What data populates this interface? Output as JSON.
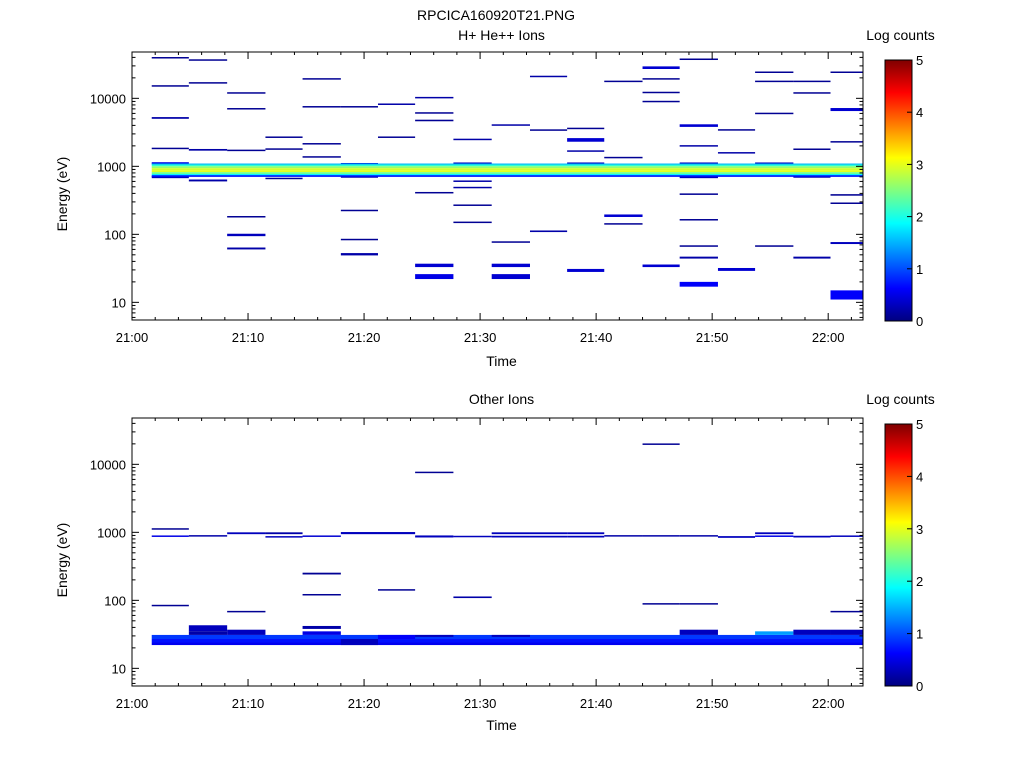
{
  "figure_title": "RPCICA160920T21.PNG",
  "chart_data": [
    {
      "type": "heatmap",
      "title": "H+ He++ Ions",
      "xlabel": "Time",
      "ylabel": "Energy (eV)",
      "colorbar_label": "Log counts",
      "x_ticks": [
        "21:00",
        "21:10",
        "21:20",
        "21:30",
        "21:40",
        "21:50",
        "22:00"
      ],
      "x_tick_minutes": [
        0,
        10,
        20,
        30,
        40,
        50,
        60
      ],
      "xlim_minutes": [
        0,
        63
      ],
      "y_ticks": [
        "10",
        "100",
        "1000",
        "10000"
      ],
      "ylim": [
        5.5,
        48000
      ],
      "y_scale": "log",
      "colorbar_ticks": [
        "0",
        "1",
        "2",
        "3",
        "4",
        "5"
      ],
      "colorbar_range": [
        0,
        5
      ],
      "colormap": "jet",
      "cells": [
        [
          1.7,
          4.9,
          39500,
          40500,
          0.1
        ],
        [
          1.7,
          4.9,
          15000,
          15600,
          0.1
        ],
        [
          1.7,
          4.9,
          5000,
          5300,
          0.2
        ],
        [
          1.7,
          4.9,
          1800,
          1880,
          0.1
        ],
        [
          1.7,
          4.9,
          1080,
          1150,
          0.5
        ],
        [
          1.7,
          4.9,
          670,
          720,
          0.3
        ],
        [
          4.9,
          8.2,
          36500,
          37500,
          0.1
        ],
        [
          4.9,
          8.2,
          16500,
          17300,
          0.1
        ],
        [
          4.9,
          8.2,
          1700,
          1800,
          0.2
        ],
        [
          4.9,
          8.2,
          600,
          640,
          0.2
        ],
        [
          8.2,
          11.5,
          11800,
          12300,
          0.1
        ],
        [
          8.2,
          11.5,
          6900,
          7200,
          0.1
        ],
        [
          8.2,
          11.5,
          1700,
          1760,
          0.1
        ],
        [
          8.2,
          11.5,
          180,
          186,
          0.1
        ],
        [
          8.2,
          11.5,
          94,
          102,
          0.3
        ],
        [
          8.2,
          11.5,
          60,
          64,
          0.2
        ],
        [
          11.5,
          14.7,
          2650,
          2750,
          0.1
        ],
        [
          11.5,
          14.7,
          1770,
          1840,
          0.1
        ],
        [
          11.5,
          14.7,
          650,
          680,
          0.1
        ],
        [
          14.7,
          18.0,
          19000,
          19800,
          0.1
        ],
        [
          14.7,
          18.0,
          7400,
          7700,
          0.1
        ],
        [
          14.7,
          18.0,
          2100,
          2200,
          0.1
        ],
        [
          14.7,
          18.0,
          1350,
          1410,
          0.1
        ],
        [
          18.0,
          21.2,
          7400,
          7700,
          0.1
        ],
        [
          18.0,
          21.2,
          1060,
          1120,
          0.4
        ],
        [
          18.0,
          21.2,
          680,
          720,
          0.2
        ],
        [
          18.0,
          21.2,
          220,
          230,
          0.1
        ],
        [
          18.0,
          21.2,
          84,
          86,
          0.1
        ],
        [
          18.0,
          21.2,
          49,
          53,
          0.2
        ],
        [
          21.2,
          24.4,
          8000,
          8400,
          0.2
        ],
        [
          21.2,
          24.4,
          2650,
          2750,
          0.1
        ],
        [
          24.4,
          27.7,
          10000,
          10500,
          0.2
        ],
        [
          24.4,
          27.7,
          6000,
          6250,
          0.1
        ],
        [
          24.4,
          27.7,
          4600,
          4850,
          0.1
        ],
        [
          24.4,
          27.7,
          400,
          420,
          0.1
        ],
        [
          24.4,
          27.7,
          33,
          37,
          0.4
        ],
        [
          24.4,
          27.7,
          22,
          26,
          0.5
        ],
        [
          27.7,
          31.0,
          2450,
          2550,
          0.2
        ],
        [
          27.7,
          31.0,
          1080,
          1140,
          0.3
        ],
        [
          27.7,
          31.0,
          590,
          620,
          0.2
        ],
        [
          27.7,
          31.0,
          480,
          500,
          0.2
        ],
        [
          27.7,
          31.0,
          265,
          275,
          0.1
        ],
        [
          27.7,
          31.0,
          148,
          154,
          0.1
        ],
        [
          31.0,
          34.3,
          3950,
          4150,
          0.2
        ],
        [
          31.0,
          34.3,
          76,
          79,
          0.1
        ],
        [
          31.0,
          34.3,
          33,
          37,
          0.4
        ],
        [
          31.0,
          34.3,
          22,
          26,
          0.4
        ],
        [
          34.3,
          37.5,
          20500,
          21500,
          0.2
        ],
        [
          34.3,
          37.5,
          3350,
          3500,
          0.1
        ],
        [
          34.3,
          37.5,
          108,
          114,
          0.2
        ],
        [
          37.5,
          40.7,
          3550,
          3700,
          0.1
        ],
        [
          37.5,
          40.7,
          2300,
          2600,
          0.4
        ],
        [
          37.5,
          40.7,
          1650,
          1720,
          0.2
        ],
        [
          37.5,
          40.7,
          1080,
          1140,
          0.3
        ],
        [
          37.5,
          40.7,
          28,
          31,
          0.4
        ],
        [
          40.7,
          44.0,
          17500,
          18200,
          0.1
        ],
        [
          40.7,
          44.0,
          1320,
          1380,
          0.1
        ],
        [
          40.7,
          44.0,
          180,
          196,
          0.4
        ],
        [
          40.7,
          44.0,
          140,
          146,
          0.1
        ],
        [
          44.0,
          47.2,
          27000,
          29500,
          0.4
        ],
        [
          44.0,
          47.2,
          19000,
          19800,
          0.1
        ],
        [
          44.0,
          47.2,
          12000,
          12500,
          0.1
        ],
        [
          44.0,
          47.2,
          8800,
          9200,
          0.1
        ],
        [
          44.0,
          47.2,
          33,
          36,
          0.4
        ],
        [
          47.2,
          50.5,
          37000,
          38500,
          0.1
        ],
        [
          47.2,
          50.5,
          3800,
          4150,
          0.4
        ],
        [
          47.2,
          50.5,
          1950,
          2050,
          0.2
        ],
        [
          47.2,
          50.5,
          1080,
          1140,
          0.3
        ],
        [
          47.2,
          50.5,
          670,
          720,
          0.3
        ],
        [
          47.2,
          50.5,
          380,
          400,
          0.1
        ],
        [
          47.2,
          50.5,
          160,
          168,
          0.1
        ],
        [
          47.2,
          50.5,
          66,
          69,
          0.1
        ],
        [
          47.2,
          50.5,
          44,
          47,
          0.2
        ],
        [
          47.2,
          50.5,
          17,
          20,
          0.6
        ],
        [
          50.5,
          53.7,
          3380,
          3520,
          0.1
        ],
        [
          50.5,
          53.7,
          1550,
          1620,
          0.2
        ],
        [
          50.5,
          53.7,
          29,
          32,
          0.4
        ],
        [
          53.7,
          57.0,
          23800,
          24800,
          0.1
        ],
        [
          53.7,
          57.0,
          17500,
          18200,
          0.1
        ],
        [
          53.7,
          57.0,
          5900,
          6150,
          0.1
        ],
        [
          53.7,
          57.0,
          1080,
          1140,
          0.3
        ],
        [
          53.7,
          57.0,
          66,
          69,
          0.1
        ],
        [
          57.0,
          60.2,
          17500,
          18200,
          0.1
        ],
        [
          57.0,
          60.2,
          11800,
          12300,
          0.1
        ],
        [
          57.0,
          60.2,
          1750,
          1830,
          0.1
        ],
        [
          57.0,
          60.2,
          680,
          720,
          0.2
        ],
        [
          57.0,
          60.2,
          44,
          47,
          0.2
        ],
        [
          60.2,
          63.0,
          23800,
          24800,
          0.1
        ],
        [
          60.2,
          63.0,
          6500,
          7200,
          0.4
        ],
        [
          60.2,
          63.0,
          2250,
          2350,
          0.1
        ],
        [
          60.2,
          63.0,
          370,
          390,
          0.1
        ],
        [
          60.2,
          63.0,
          280,
          294,
          0.1
        ],
        [
          60.2,
          63.0,
          72,
          77,
          0.3
        ],
        [
          60.2,
          63.0,
          11,
          15,
          0.6
        ],
        [
          1.7,
          63.0,
          1060,
          1100,
          1.5
        ],
        [
          1.7,
          63.0,
          1000,
          1060,
          2.1
        ],
        [
          1.7,
          63.0,
          940,
          1000,
          2.6
        ],
        [
          1.7,
          63.0,
          880,
          940,
          2.9
        ],
        [
          1.7,
          63.0,
          820,
          880,
          3.0
        ],
        [
          1.7,
          63.0,
          770,
          820,
          2.4
        ],
        [
          1.7,
          63.0,
          740,
          770,
          1.8
        ],
        [
          1.7,
          63.0,
          700,
          740,
          0.7
        ]
      ]
    },
    {
      "type": "heatmap",
      "title": "Other Ions",
      "xlabel": "Time",
      "ylabel": "Energy (eV)",
      "colorbar_label": "Log counts",
      "x_ticks": [
        "21:00",
        "21:10",
        "21:20",
        "21:30",
        "21:40",
        "21:50",
        "22:00"
      ],
      "x_tick_minutes": [
        0,
        10,
        20,
        30,
        40,
        50,
        60
      ],
      "xlim_minutes": [
        0,
        63
      ],
      "y_ticks": [
        "10",
        "100",
        "1000",
        "10000"
      ],
      "ylim": [
        5.5,
        48000
      ],
      "y_scale": "log",
      "colorbar_ticks": [
        "0",
        "1",
        "2",
        "3",
        "4",
        "5"
      ],
      "colorbar_range": [
        0,
        5
      ],
      "colormap": "jet",
      "cells": [
        [
          1.7,
          4.9,
          1100,
          1150,
          0.1
        ],
        [
          1.7,
          4.9,
          860,
          900,
          0.5
        ],
        [
          1.7,
          4.9,
          84,
          86,
          0.1
        ],
        [
          4.9,
          8.2,
          880,
          910,
          0.2
        ],
        [
          8.2,
          11.5,
          940,
          1000,
          0.3
        ],
        [
          8.2,
          11.5,
          67,
          70,
          0.1
        ],
        [
          11.5,
          14.7,
          940,
          1000,
          0.2
        ],
        [
          11.5,
          14.7,
          850,
          880,
          0.3
        ],
        [
          14.7,
          18.0,
          860,
          900,
          0.4
        ],
        [
          14.7,
          18.0,
          240,
          255,
          0.1
        ],
        [
          14.7,
          18.0,
          118,
          124,
          0.1
        ],
        [
          18.0,
          21.2,
          940,
          1010,
          0.3
        ],
        [
          21.2,
          24.4,
          940,
          1010,
          0.3
        ],
        [
          21.2,
          24.4,
          140,
          146,
          0.1
        ],
        [
          24.4,
          27.7,
          7500,
          7800,
          0.1
        ],
        [
          24.4,
          27.7,
          840,
          900,
          0.3
        ],
        [
          27.7,
          31.0,
          850,
          890,
          0.3
        ],
        [
          27.7,
          31.0,
          108,
          114,
          0.2
        ],
        [
          31.0,
          34.3,
          940,
          1000,
          0.3
        ],
        [
          31.0,
          34.3,
          840,
          890,
          0.3
        ],
        [
          34.3,
          37.5,
          940,
          1000,
          0.3
        ],
        [
          34.3,
          37.5,
          840,
          890,
          0.3
        ],
        [
          37.5,
          40.7,
          940,
          1000,
          0.3
        ],
        [
          37.5,
          40.7,
          840,
          890,
          0.3
        ],
        [
          40.7,
          44.0,
          880,
          910,
          0.2
        ],
        [
          44.0,
          47.2,
          19500,
          20300,
          0.1
        ],
        [
          44.0,
          47.2,
          880,
          910,
          0.2
        ],
        [
          44.0,
          47.2,
          88,
          91,
          0.1
        ],
        [
          47.2,
          50.5,
          880,
          910,
          0.2
        ],
        [
          47.2,
          50.5,
          88,
          91,
          0.1
        ],
        [
          50.5,
          53.7,
          830,
          880,
          0.3
        ],
        [
          53.7,
          57.0,
          940,
          1000,
          0.3
        ],
        [
          53.7,
          57.0,
          860,
          900,
          0.5
        ],
        [
          57.0,
          60.2,
          840,
          890,
          0.3
        ],
        [
          60.2,
          63.0,
          860,
          900,
          0.3
        ],
        [
          60.2,
          63.0,
          67,
          70,
          0.1
        ],
        [
          1.7,
          63.0,
          27,
          31,
          0.9
        ],
        [
          1.7,
          63.0,
          24,
          27,
          0.7
        ],
        [
          1.7,
          63.0,
          22,
          24,
          0.55
        ],
        [
          4.9,
          8.2,
          35,
          43,
          0.3
        ],
        [
          4.9,
          8.2,
          31,
          35,
          0.2
        ],
        [
          8.2,
          11.5,
          31,
          37,
          0.3
        ],
        [
          14.7,
          18.0,
          38,
          42,
          0.2
        ],
        [
          14.7,
          18.0,
          31,
          35,
          0.5
        ],
        [
          18.0,
          21.2,
          22,
          27,
          0.3
        ],
        [
          21.2,
          24.4,
          27,
          31,
          0.6
        ],
        [
          24.4,
          27.7,
          29,
          31,
          0.3
        ],
        [
          31.0,
          34.3,
          29,
          31,
          0.3
        ],
        [
          47.2,
          50.5,
          31,
          37,
          0.3
        ],
        [
          53.7,
          57.0,
          31,
          35,
          1.4
        ],
        [
          57.0,
          60.2,
          31,
          37,
          0.3
        ],
        [
          60.2,
          63.0,
          31,
          37,
          0.3
        ]
      ]
    }
  ]
}
